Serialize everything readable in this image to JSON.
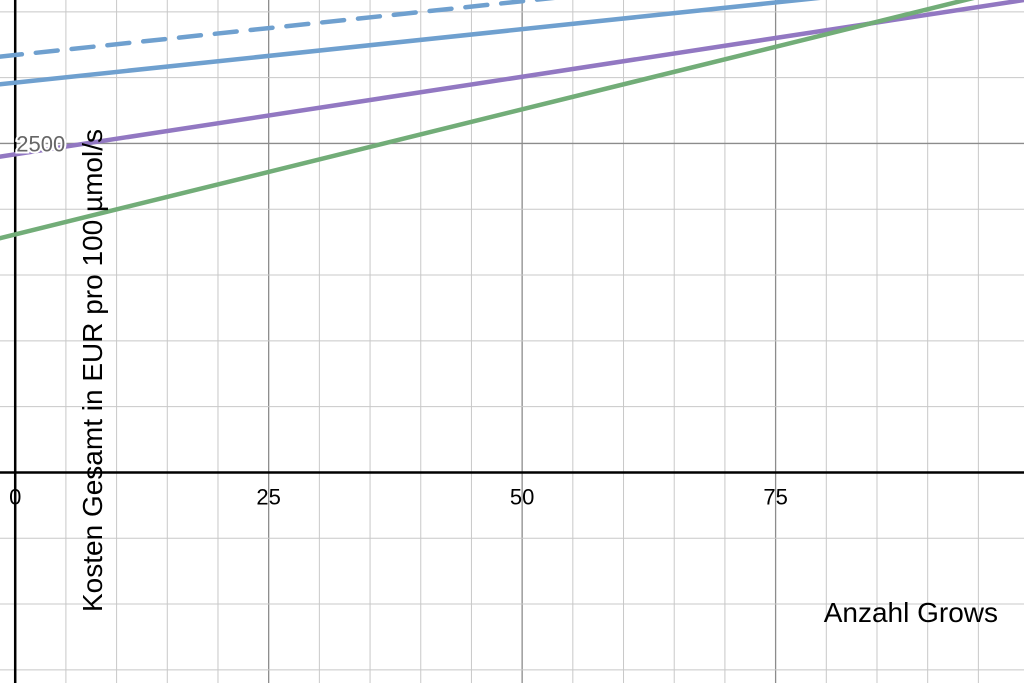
{
  "chart_data": {
    "type": "line",
    "title": "",
    "xlabel": "Anzahl Grows",
    "ylabel": "Kosten Gesamt in EUR pro 100 µmol/s",
    "xlim": [
      -1.5,
      99.5
    ],
    "ylim": [
      -1600,
      3590
    ],
    "grid": true,
    "x_ticks": [
      {
        "value": 0,
        "label": "0"
      },
      {
        "value": 25,
        "label": "25"
      },
      {
        "value": 50,
        "label": "50"
      },
      {
        "value": 75,
        "label": "75"
      }
    ],
    "y_ticks": [
      {
        "value": 2500,
        "label": "2500"
      }
    ],
    "series": [
      {
        "color": "#6fa0cf",
        "dash": true,
        "x": [
          -1.5,
          99.5
        ],
        "y": [
          3160,
          3985
        ]
      },
      {
        "color": "#6fa0cf",
        "dash": false,
        "x": [
          -1.5,
          99.5
        ],
        "y": [
          2950,
          3770
        ]
      },
      {
        "color": "#9278c2",
        "dash": false,
        "x": [
          -1.5,
          99.5
        ],
        "y": [
          2400,
          3590
        ]
      },
      {
        "color": "#72ad78",
        "dash": false,
        "x": [
          -1.5,
          99.5
        ],
        "y": [
          1780,
          3700
        ]
      }
    ]
  }
}
